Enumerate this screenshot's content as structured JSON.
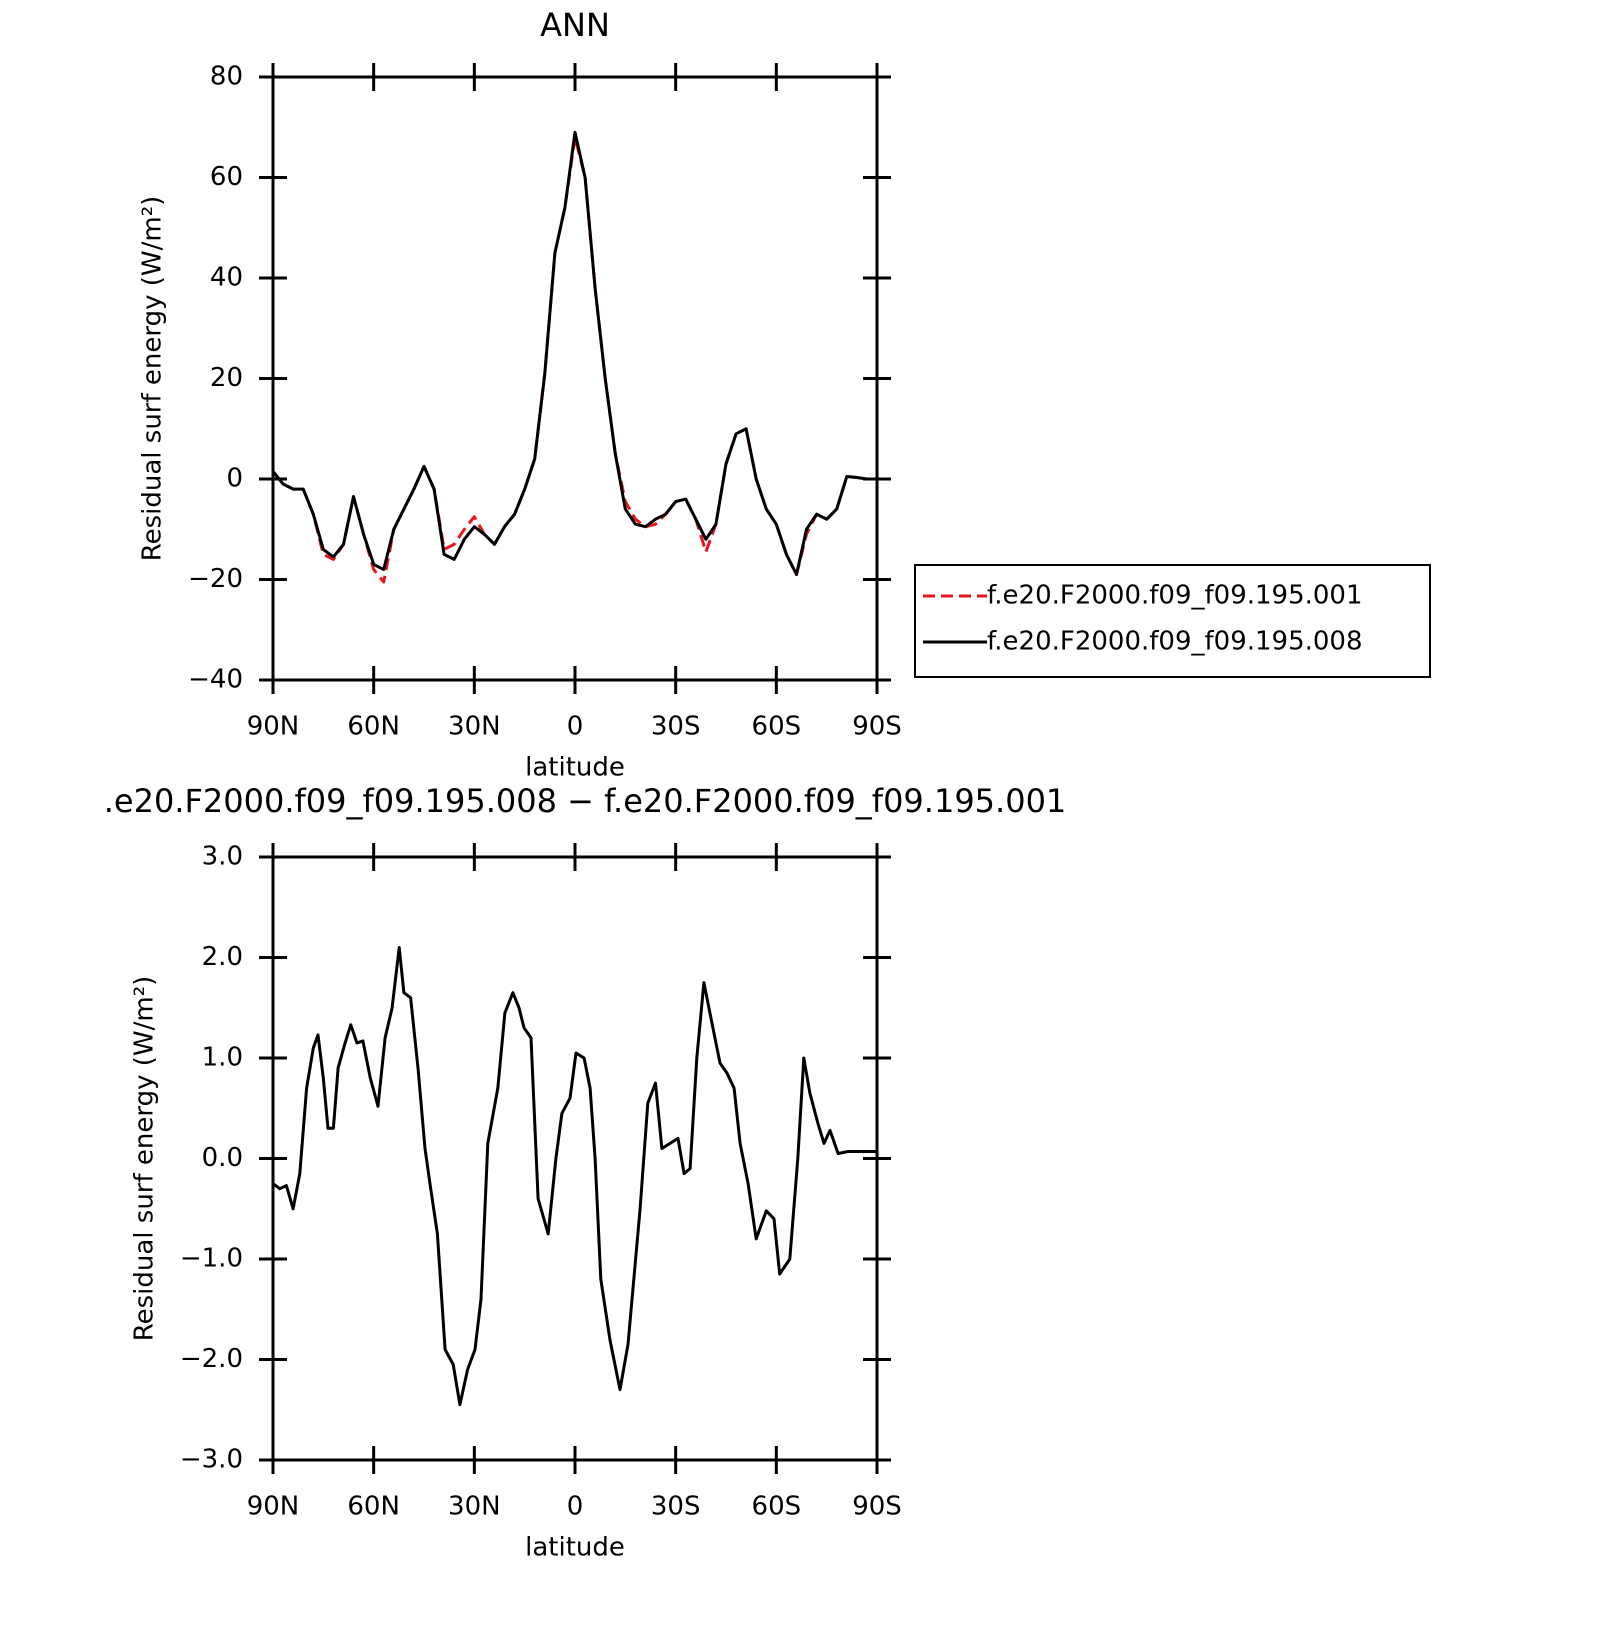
{
  "chart_data": [
    {
      "type": "line",
      "title": "ANN",
      "x_label": "latitude",
      "y_label": "Residual surf energy (W/m²)",
      "x": [
        90,
        87,
        84,
        81,
        78,
        75,
        72,
        69,
        66,
        63,
        60,
        57,
        54,
        51,
        48,
        45,
        42,
        39,
        36,
        33,
        30,
        27,
        24,
        21,
        18,
        15,
        12,
        9,
        6,
        3,
        0,
        -3,
        -6,
        -9,
        -12,
        -15,
        -18,
        -21,
        -24,
        -27,
        -30,
        -33,
        -36,
        -39,
        -42,
        -45,
        -48,
        -51,
        -54,
        -57,
        -60,
        -63,
        -66,
        -69,
        -72,
        -75,
        -78,
        -81,
        -84,
        -87,
        -90
      ],
      "series": [
        {
          "name": "f.e20.F2000.f09_f09.195.001",
          "color": "#e8141c",
          "dash": true,
          "values": [
            1.5,
            -1,
            -2,
            -2,
            -7,
            -15,
            -16,
            -13,
            -3.5,
            -11,
            -18,
            -20.5,
            -10,
            -6,
            -2,
            2.5,
            -2,
            -14,
            -13,
            -10,
            -7.5,
            -11,
            -13,
            -9.5,
            -7,
            -2,
            4,
            21,
            45,
            54,
            68,
            60,
            38,
            20,
            5,
            -4.5,
            -8,
            -9.5,
            -9,
            -7,
            -4.5,
            -4,
            -8,
            -14.5,
            -9,
            3,
            9,
            10,
            0,
            -6,
            -9,
            -15,
            -19,
            -11,
            -7,
            -8,
            -6,
            0.5,
            0.3,
            0,
            0
          ]
        },
        {
          "name": "f.e20.F2000.f09_f09.195.008",
          "color": "#000000",
          "dash": false,
          "values": [
            1.5,
            -1,
            -2,
            -2,
            -7,
            -14,
            -15.5,
            -13,
            -3.5,
            -11,
            -17,
            -18,
            -10,
            -6,
            -2,
            2.5,
            -2,
            -15,
            -16,
            -12,
            -9.5,
            -11,
            -13,
            -9.5,
            -7,
            -2,
            4,
            21,
            45,
            54,
            69,
            60,
            38,
            20,
            5,
            -6,
            -9,
            -9.5,
            -8,
            -7,
            -4.5,
            -4,
            -8,
            -12,
            -9,
            3,
            9,
            10,
            0,
            -6,
            -9,
            -15,
            -19,
            -10,
            -7,
            -8,
            -6,
            0.5,
            0.3,
            0,
            0
          ]
        }
      ],
      "xlim": [
        90,
        -90
      ],
      "xticks": [
        {
          "value": 90,
          "label": "90N"
        },
        {
          "value": 60,
          "label": "60N"
        },
        {
          "value": 30,
          "label": "30N"
        },
        0,
        {
          "value": -30,
          "label": "30S"
        },
        {
          "value": -60,
          "label": "60S"
        },
        {
          "value": -90,
          "label": "90S"
        }
      ],
      "ylim": [
        -40,
        80
      ],
      "yticks": [
        {
          "value": -40,
          "label": "−40"
        },
        {
          "value": -20,
          "label": "−20"
        },
        0,
        20,
        40,
        60,
        80
      ],
      "legend": "right"
    },
    {
      "type": "line",
      "title": ".e20.F2000.f09_f09.195.008 − f.e20.F2000.f09_f09.195.001",
      "x_label": "latitude",
      "y_label": "Residual surf energy (W/m²)",
      "x": [
        90,
        88,
        86,
        84,
        82,
        80,
        78,
        76.6,
        75,
        73.6,
        72,
        70.6,
        68.5,
        66.8,
        65,
        63.2,
        61,
        58.7,
        56.6,
        54.5,
        52.4,
        51,
        49,
        46.8,
        44.7,
        43,
        41,
        38.7,
        36.3,
        34.3,
        32,
        29.8,
        28,
        26,
        23,
        20.9,
        18.5,
        16.7,
        15.2,
        13.1,
        11,
        8,
        5.7,
        3.9,
        1.5,
        -0.3,
        -2.7,
        -4.5,
        -6,
        -7.7,
        -10.4,
        -13.4,
        -15.8,
        -19.4,
        -21.7,
        -24,
        -25.9,
        -28.3,
        -30.7,
        -32.5,
        -34.3,
        -36.3,
        -38.4,
        -40.5,
        -43.2,
        -45.3,
        -47.4,
        -49.2,
        -51.6,
        -54,
        -57,
        -59.3,
        -61,
        -64,
        -66.4,
        -68.2,
        -70,
        -72.4,
        -74.2,
        -76,
        -78.4,
        -81.4,
        -90
      ],
      "series": [
        {
          "color": "#000000",
          "dash": false,
          "values": [
            -0.25,
            -0.3,
            -0.27,
            -0.5,
            -0.15,
            0.7,
            1.1,
            1.23,
            0.8,
            0.3,
            0.3,
            0.9,
            1.15,
            1.33,
            1.15,
            1.17,
            0.8,
            0.52,
            1.2,
            1.5,
            2.1,
            1.65,
            1.6,
            0.9,
            0.1,
            -0.3,
            -0.75,
            -1.9,
            -2.05,
            -2.45,
            -2.1,
            -1.9,
            -1.4,
            0.15,
            0.7,
            1.45,
            1.65,
            1.5,
            1.3,
            1.2,
            -0.4,
            -0.75,
            0,
            0.45,
            0.6,
            1.05,
            1,
            0.7,
            0,
            -1.2,
            -1.8,
            -2.3,
            -1.85,
            -0.5,
            0.55,
            0.75,
            0.1,
            0.15,
            0.2,
            -0.15,
            -0.1,
            1,
            1.75,
            1.4,
            0.95,
            0.85,
            0.7,
            0.15,
            -0.25,
            -0.8,
            -0.52,
            -0.6,
            -1.15,
            -1,
            0,
            1,
            0.65,
            0.35,
            0.15,
            0.28,
            0.05,
            0.07,
            0.07
          ]
        }
      ],
      "xlim": [
        90,
        -90
      ],
      "xticks": [
        {
          "value": 90,
          "label": "90N"
        },
        {
          "value": 60,
          "label": "60N"
        },
        {
          "value": 30,
          "label": "30N"
        },
        0,
        {
          "value": -30,
          "label": "30S"
        },
        {
          "value": -60,
          "label": "60S"
        },
        {
          "value": -90,
          "label": "90S"
        }
      ],
      "ylim": [
        -3,
        3
      ],
      "yticks": [
        {
          "value": -3,
          "label": "−3.0"
        },
        {
          "value": -2,
          "label": "−2.0"
        },
        {
          "value": -1,
          "label": "−1.0"
        },
        {
          "value": 0,
          "label": "0.0"
        },
        {
          "value": 1,
          "label": "1.0"
        },
        {
          "value": 2,
          "label": "2.0"
        },
        {
          "value": 3,
          "label": "3.0"
        }
      ]
    }
  ]
}
